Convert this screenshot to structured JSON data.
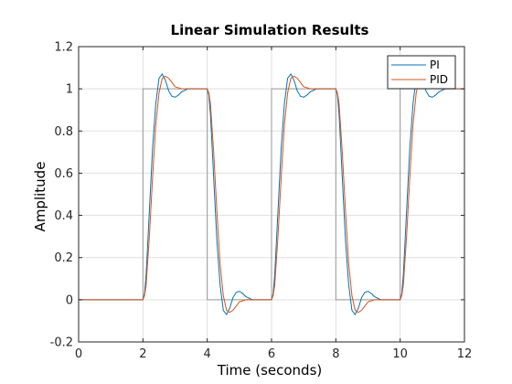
{
  "chart_data": {
    "type": "line",
    "title": "Linear Simulation Results",
    "xlabel": "Time (seconds)",
    "ylabel": "Amplitude",
    "xlim": [
      0,
      12
    ],
    "ylim": [
      -0.2,
      1.2
    ],
    "xticks": [
      "0",
      "2",
      "4",
      "6",
      "8",
      "10",
      "12"
    ],
    "xtick_values": [
      0,
      2,
      4,
      6,
      8,
      10,
      12
    ],
    "yticks": [
      "-0.2",
      "0",
      "0.2",
      "0.4",
      "0.6",
      "0.8",
      "1",
      "1.2"
    ],
    "ytick_values": [
      -0.2,
      0,
      0.2,
      0.4,
      0.6,
      0.8,
      1,
      1.2
    ],
    "grid": true,
    "legend_position": "top-right",
    "input": {
      "color": "#999999",
      "x": [
        0,
        2,
        2,
        4,
        4,
        6,
        6,
        8,
        8,
        10,
        10,
        12
      ],
      "y": [
        0,
        0,
        1,
        1,
        0,
        0,
        1,
        1,
        0,
        0,
        1,
        1
      ]
    },
    "series": [
      {
        "name": "PI",
        "color": "#0072BD",
        "x": [
          0,
          2,
          2.05,
          2.1,
          2.2,
          2.3,
          2.4,
          2.5,
          2.6,
          2.7,
          2.8,
          2.9,
          3.0,
          3.1,
          3.2,
          3.4,
          3.6,
          3.8,
          4.0,
          4.05,
          4.1,
          4.2,
          4.3,
          4.4,
          4.5,
          4.6,
          4.7,
          4.8,
          4.9,
          5.0,
          5.1,
          5.2,
          5.4,
          5.6,
          5.8,
          6.0,
          6.05,
          6.1,
          6.2,
          6.3,
          6.4,
          6.5,
          6.6,
          6.7,
          6.8,
          6.9,
          7.0,
          7.1,
          7.2,
          7.4,
          7.6,
          7.8,
          8.0,
          8.05,
          8.1,
          8.2,
          8.3,
          8.4,
          8.5,
          8.6,
          8.7,
          8.8,
          8.9,
          9.0,
          9.1,
          9.2,
          9.4,
          9.6,
          9.8,
          10.0,
          10.05,
          10.1,
          10.2,
          10.3,
          10.4,
          10.5,
          10.6,
          10.7,
          10.8,
          10.9,
          11.0,
          11.1,
          11.2,
          11.4,
          11.6,
          11.8,
          12.0
        ],
        "y": [
          0,
          0,
          0.03,
          0.12,
          0.42,
          0.72,
          0.93,
          1.05,
          1.07,
          1.04,
          0.99,
          0.965,
          0.96,
          0.97,
          0.985,
          1.0,
          1.0,
          1.0,
          1.0,
          0.97,
          0.88,
          0.58,
          0.28,
          0.07,
          -0.05,
          -0.07,
          -0.04,
          0.01,
          0.035,
          0.04,
          0.03,
          0.015,
          0.0,
          0.0,
          0.0,
          0.0,
          0.03,
          0.12,
          0.42,
          0.72,
          0.93,
          1.05,
          1.07,
          1.04,
          0.99,
          0.965,
          0.96,
          0.97,
          0.985,
          1.0,
          1.0,
          1.0,
          1.0,
          0.97,
          0.88,
          0.58,
          0.28,
          0.07,
          -0.05,
          -0.07,
          -0.04,
          0.01,
          0.035,
          0.04,
          0.03,
          0.015,
          0.0,
          0.0,
          0.0,
          0.0,
          0.03,
          0.12,
          0.42,
          0.72,
          0.93,
          1.05,
          1.07,
          1.04,
          0.99,
          0.965,
          0.96,
          0.97,
          0.985,
          1.0,
          1.0,
          1.0,
          1.0
        ]
      },
      {
        "name": "PID",
        "color": "#D95319",
        "x": [
          0,
          2,
          2.05,
          2.1,
          2.2,
          2.3,
          2.4,
          2.5,
          2.6,
          2.7,
          2.8,
          2.9,
          3.0,
          3.2,
          3.4,
          3.6,
          3.8,
          4.0,
          4.05,
          4.1,
          4.2,
          4.3,
          4.4,
          4.5,
          4.6,
          4.7,
          4.8,
          4.9,
          5.0,
          5.2,
          5.4,
          5.6,
          5.8,
          6.0,
          6.05,
          6.1,
          6.2,
          6.3,
          6.4,
          6.5,
          6.6,
          6.7,
          6.8,
          6.9,
          7.0,
          7.2,
          7.4,
          7.6,
          7.8,
          8.0,
          8.05,
          8.1,
          8.2,
          8.3,
          8.4,
          8.5,
          8.6,
          8.7,
          8.8,
          8.9,
          9.0,
          9.2,
          9.4,
          9.6,
          9.8,
          10.0,
          10.05,
          10.1,
          10.2,
          10.3,
          10.4,
          10.5,
          10.6,
          10.7,
          10.8,
          10.9,
          11.0,
          11.2,
          11.4,
          11.6,
          11.8,
          12.0
        ],
        "y": [
          0,
          0,
          0.02,
          0.07,
          0.3,
          0.58,
          0.83,
          0.98,
          1.05,
          1.06,
          1.05,
          1.03,
          1.01,
          1.0,
          1.0,
          1.0,
          1.0,
          1.0,
          0.98,
          0.93,
          0.7,
          0.42,
          0.17,
          0.02,
          -0.05,
          -0.06,
          -0.05,
          -0.03,
          -0.01,
          0.0,
          0.0,
          0.0,
          0.0,
          0.0,
          0.02,
          0.07,
          0.3,
          0.58,
          0.83,
          0.98,
          1.05,
          1.06,
          1.05,
          1.03,
          1.01,
          1.0,
          1.0,
          1.0,
          1.0,
          1.0,
          0.98,
          0.93,
          0.7,
          0.42,
          0.17,
          0.02,
          -0.05,
          -0.06,
          -0.05,
          -0.03,
          -0.01,
          0.0,
          0.0,
          0.0,
          0.0,
          0.0,
          0.02,
          0.07,
          0.3,
          0.58,
          0.83,
          0.98,
          1.05,
          1.06,
          1.05,
          1.03,
          1.01,
          1.0,
          1.0,
          1.0,
          1.0,
          1.0
        ]
      }
    ]
  }
}
